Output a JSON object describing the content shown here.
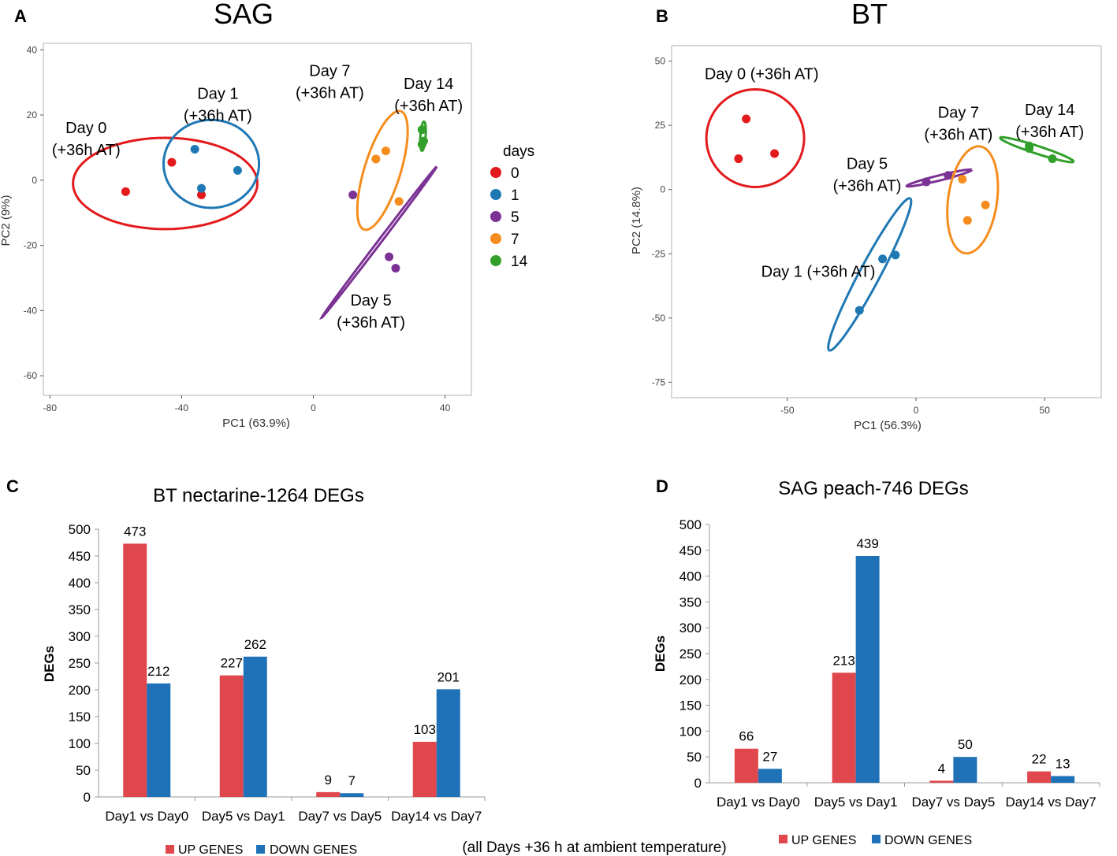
{
  "footnote": "(all Days +36 h at ambient temperature)",
  "colors": {
    "day0": "#e31a1c",
    "day1": "#1f78b4",
    "day5": "#7b3294",
    "day7": "#f58d1e",
    "day14": "#33a02c",
    "up": "#e0474c",
    "down": "#1f72b8"
  },
  "chart_data": [
    {
      "panel": "A",
      "type": "scatter",
      "title": "SAG",
      "xlabel": "PC1 (63.9%)",
      "ylabel": "PC2 (9%)",
      "xlim": [
        -82,
        48
      ],
      "ylim": [
        -66,
        42
      ],
      "xticks": [
        "-80",
        "-40",
        "0",
        "40"
      ],
      "xtick_values": [
        -80,
        -40,
        0,
        40
      ],
      "yticks": [
        "40",
        "20",
        "0",
        "-20",
        "-40",
        "-60"
      ],
      "ytick_values": [
        40,
        20,
        0,
        -20,
        -40,
        -60
      ],
      "legend_title": "days",
      "legend_entries": [
        "0",
        "1",
        "5",
        "7",
        "14"
      ],
      "series": [
        {
          "name": "0",
          "color_key": "day0",
          "label": [
            "Day 0",
            "(+36h AT)"
          ],
          "label_at": [
            -69,
            14.5
          ],
          "points": [
            [
              -57,
              -3.5
            ],
            [
              -43,
              5.5
            ],
            [
              -34,
              -4.5
            ]
          ],
          "ellipse": {
            "cx": -45,
            "cy": -1,
            "rx": 28,
            "ry": 14,
            "rot": 0
          }
        },
        {
          "name": "1",
          "color_key": "day1",
          "label": [
            "Day 1",
            "(+36h AT)"
          ],
          "label_at": [
            -29,
            25
          ],
          "points": [
            [
              -36,
              9.5
            ],
            [
              -34,
              -2.5
            ],
            [
              -23,
              3
            ]
          ],
          "ellipse": {
            "cx": -31,
            "cy": 5,
            "rx": 14.5,
            "ry": 13.5,
            "rot": 0
          }
        },
        {
          "name": "5",
          "color_key": "day5",
          "label": [
            "Day 5",
            "(+36h AT)"
          ],
          "label_at": [
            17.5,
            -38.5
          ],
          "points": [
            [
              12,
              -4.5
            ],
            [
              23,
              -23.5
            ],
            [
              25,
              -27
            ]
          ],
          "ellipse": {
            "cx": 20,
            "cy": -19,
            "rx": 29,
            "ry": 0.5,
            "rot": 53
          }
        },
        {
          "name": "7",
          "color_key": "day7",
          "label": [
            "Day 7",
            "(+36h AT)"
          ],
          "label_at": [
            5,
            32
          ]
        },
        {
          "name": "7",
          "color_key": "day7",
          "points": [
            [
              19,
              6.5
            ],
            [
              22,
              9
            ],
            [
              26,
              -6.5
            ]
          ],
          "ellipse": {
            "cx": 21,
            "cy": 3,
            "rx": 19,
            "ry": 5.5,
            "rot": 73
          }
        },
        {
          "name": "14",
          "color_key": "day14",
          "label": [
            "Day 14",
            "(+36h AT)"
          ],
          "label_at": [
            35,
            28
          ],
          "points": [
            [
              33,
              15.5
            ],
            [
              33.5,
              12
            ],
            [
              33,
              11
            ]
          ],
          "ellipse": {
            "cx": 33.3,
            "cy": 13.5,
            "rx": 4.5,
            "ry": 0.8,
            "rot": 86
          }
        }
      ]
    },
    {
      "panel": "B",
      "type": "scatter",
      "title": "BT",
      "xlabel": "PC1 (56.3%)",
      "ylabel": "PC2 (14.8%)",
      "xlim": [
        -95,
        72
      ],
      "ylim": [
        -81,
        56
      ],
      "xticks": [
        "-50",
        "0",
        "50"
      ],
      "xtick_values": [
        -50,
        0,
        50
      ],
      "yticks": [
        "50",
        "25",
        "0",
        "-25",
        "-50",
        "-75"
      ],
      "ytick_values": [
        50,
        25,
        0,
        -25,
        -50,
        -75
      ],
      "series": [
        {
          "name": "0",
          "color_key": "day0",
          "label": [
            "Day 0 (+36h AT)"
          ],
          "label_at": [
            -60,
            43
          ],
          "points": [
            [
              -66,
              27.5
            ],
            [
              -55,
              14
            ],
            [
              -69,
              12
            ]
          ],
          "ellipse": {
            "cx": -62.5,
            "cy": 20,
            "rx": 19,
            "ry": 19,
            "rot": 0
          }
        },
        {
          "name": "1",
          "color_key": "day1",
          "label": [
            "Day 1 (+36h AT)"
          ],
          "label_at": [
            -38,
            -34
          ],
          "points": [
            [
              -13,
              -27
            ],
            [
              -8,
              -25.5
            ],
            [
              -22,
              -47
            ]
          ],
          "ellipse": {
            "cx": -18,
            "cy": -33,
            "rx": 33.5,
            "ry": 4,
            "rot": 62
          }
        },
        {
          "name": "5",
          "color_key": "day5",
          "label": [
            "Day 5",
            "(+36h AT)"
          ],
          "label_at": [
            -19,
            8
          ]
        },
        {
          "name": "5",
          "color_key": "day5",
          "points": [
            [
              4,
              3
            ],
            [
              12.5,
              5.5
            ]
          ],
          "ellipse": {
            "cx": 9,
            "cy": 4.5,
            "rx": 13,
            "ry": 1,
            "rot": 14
          }
        },
        {
          "name": "7",
          "color_key": "day7",
          "label": [
            "Day 7",
            "(+36h AT)"
          ],
          "label_at": [
            16.5,
            28
          ]
        },
        {
          "name": "7",
          "color_key": "day7",
          "points": [
            [
              18,
              4
            ],
            [
              27,
              -6
            ],
            [
              20,
              -12
            ]
          ],
          "ellipse": {
            "cx": 22,
            "cy": -4,
            "rx": 21,
            "ry": 9.5,
            "rot": 82
          }
        },
        {
          "name": "14",
          "color_key": "day14",
          "label": [
            "Day 14",
            "(+36h AT)"
          ],
          "label_at": [
            52,
            29
          ],
          "points": [
            [
              44,
              17
            ],
            [
              44,
              16
            ],
            [
              53,
              12
            ]
          ],
          "ellipse": {
            "cx": 47,
            "cy": 15.5,
            "rx": 15,
            "ry": 1.5,
            "rot": -18
          }
        }
      ]
    },
    {
      "panel": "C",
      "type": "bar",
      "title": "BT nectarine-1264 DEGs",
      "xlabel": "",
      "ylabel": "DEGs",
      "ylim": [
        0,
        500
      ],
      "yticks": [
        "500",
        "450",
        "400",
        "350",
        "300",
        "250",
        "200",
        "150",
        "100",
        "50",
        "0"
      ],
      "ytick_values": [
        500,
        450,
        400,
        350,
        300,
        250,
        200,
        150,
        100,
        50,
        0
      ],
      "categories": [
        "Day1 vs Day0",
        "Day5 vs Day1",
        "Day7 vs Day5",
        "Day14 vs Day7"
      ],
      "series": [
        {
          "name": "UP GENES",
          "color_key": "up",
          "values": [
            473,
            227,
            9,
            103
          ],
          "labels": [
            "473",
            "227",
            "9",
            "103"
          ]
        },
        {
          "name": "DOWN GENES",
          "color_key": "down",
          "values": [
            212,
            262,
            7,
            201
          ],
          "labels": [
            "212",
            "262",
            "7",
            "201"
          ]
        }
      ]
    },
    {
      "panel": "D",
      "type": "bar",
      "title": "SAG peach-746 DEGs",
      "xlabel": "",
      "ylabel": "DEGs",
      "ylim": [
        0,
        500
      ],
      "yticks": [
        "500",
        "450",
        "400",
        "350",
        "300",
        "250",
        "200",
        "150",
        "100",
        "50",
        "0"
      ],
      "ytick_values": [
        500,
        450,
        400,
        350,
        300,
        250,
        200,
        150,
        100,
        50,
        0
      ],
      "categories": [
        "Day1 vs Day0",
        "Day5 vs Day1",
        "Day7 vs Day5",
        "Day14 vs Day7"
      ],
      "series": [
        {
          "name": "UP GENES",
          "color_key": "up",
          "values": [
            66,
            213,
            4,
            22
          ],
          "labels": [
            "66",
            "213",
            "4",
            "22"
          ]
        },
        {
          "name": "DOWN GENES",
          "color_key": "down",
          "values": [
            27,
            439,
            50,
            13
          ],
          "labels": [
            "27",
            "439",
            "50",
            "13"
          ]
        }
      ]
    }
  ]
}
